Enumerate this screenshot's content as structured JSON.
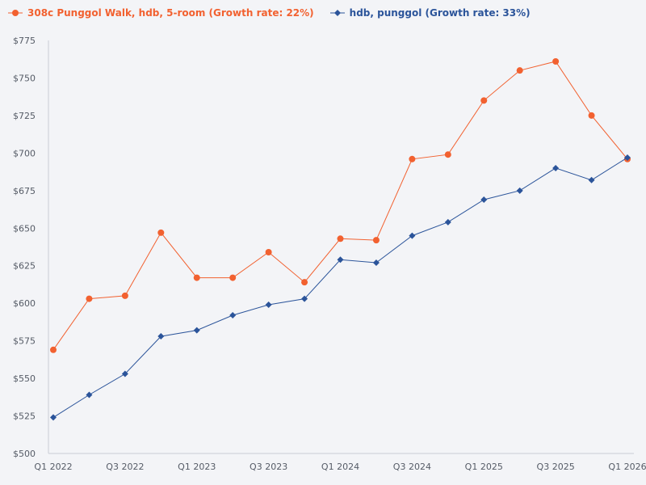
{
  "chart_data": {
    "type": "line",
    "title": "",
    "xlabel": "",
    "ylabel": "",
    "x": [
      "Q1 2022",
      "Q2 2022",
      "Q3 2022",
      "Q4 2022",
      "Q1 2023",
      "Q2 2023",
      "Q3 2023",
      "Q4 2023",
      "Q1 2024",
      "Q2 2024",
      "Q3 2024",
      "Q4 2024",
      "Q1 2025",
      "Q2 2025",
      "Q3 2025",
      "Q4 2025",
      "Q1 2026"
    ],
    "x_tick_labels": [
      "Q1 2022",
      "Q3 2022",
      "Q1 2023",
      "Q3 2023",
      "Q1 2024",
      "Q3 2024",
      "Q1 2025",
      "Q3 2025",
      "Q1 2026"
    ],
    "ylim": [
      500,
      775
    ],
    "y_ticks": [
      500,
      525,
      550,
      575,
      600,
      625,
      650,
      675,
      700,
      725,
      750,
      775
    ],
    "y_tick_labels": [
      "$500",
      "$525",
      "$550",
      "$575",
      "$600",
      "$625",
      "$650",
      "$675",
      "$700",
      "$725",
      "$750",
      "$775"
    ],
    "grid": false,
    "legend_position": "top-left",
    "series": [
      {
        "name": "308c Punggol Walk, hdb, 5-room (Growth rate: 22%)",
        "color": "#f26130",
        "marker": "circle",
        "values": [
          569,
          603,
          605,
          647,
          617,
          617,
          634,
          614,
          643,
          642,
          696,
          699,
          735,
          755,
          761,
          725,
          696
        ]
      },
      {
        "name": "hdb, punggol (Growth rate: 33%)",
        "color": "#2b549a",
        "marker": "diamond",
        "values": [
          524,
          539,
          553,
          578,
          582,
          592,
          599,
          603,
          629,
          627,
          645,
          654,
          669,
          675,
          690,
          682,
          697
        ]
      }
    ]
  }
}
